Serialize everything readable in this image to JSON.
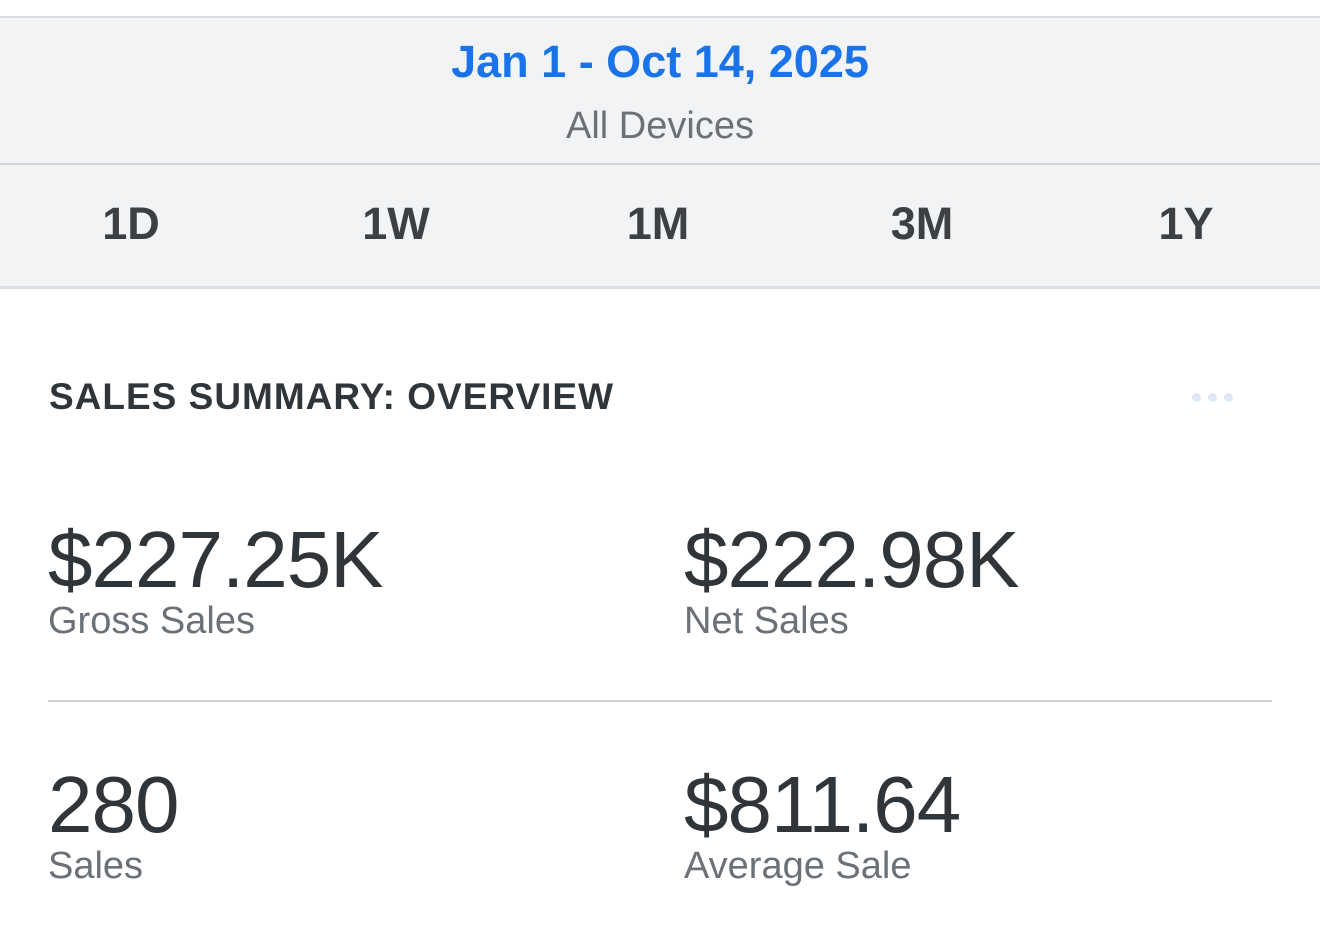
{
  "header": {
    "date_range": "Jan 1 - Oct 14, 2025",
    "device_filter": "All Devices"
  },
  "time_tabs": [
    {
      "label": "1D"
    },
    {
      "label": "1W"
    },
    {
      "label": "1M"
    },
    {
      "label": "3M"
    },
    {
      "label": "1Y"
    }
  ],
  "summary": {
    "title": "SALES SUMMARY: OVERVIEW",
    "more_icon": "ellipsis-icon",
    "metrics": [
      {
        "value": "$227.25K",
        "label": "Gross Sales"
      },
      {
        "value": "$222.98K",
        "label": "Net Sales"
      },
      {
        "value": "280",
        "label": "Sales"
      },
      {
        "value": "$811.64",
        "label": "Average Sale"
      }
    ]
  },
  "colors": {
    "accent": "#1a73e8",
    "header_bg": "#f2f3f5",
    "text_primary": "#2f3538",
    "text_secondary": "#6b7177"
  }
}
